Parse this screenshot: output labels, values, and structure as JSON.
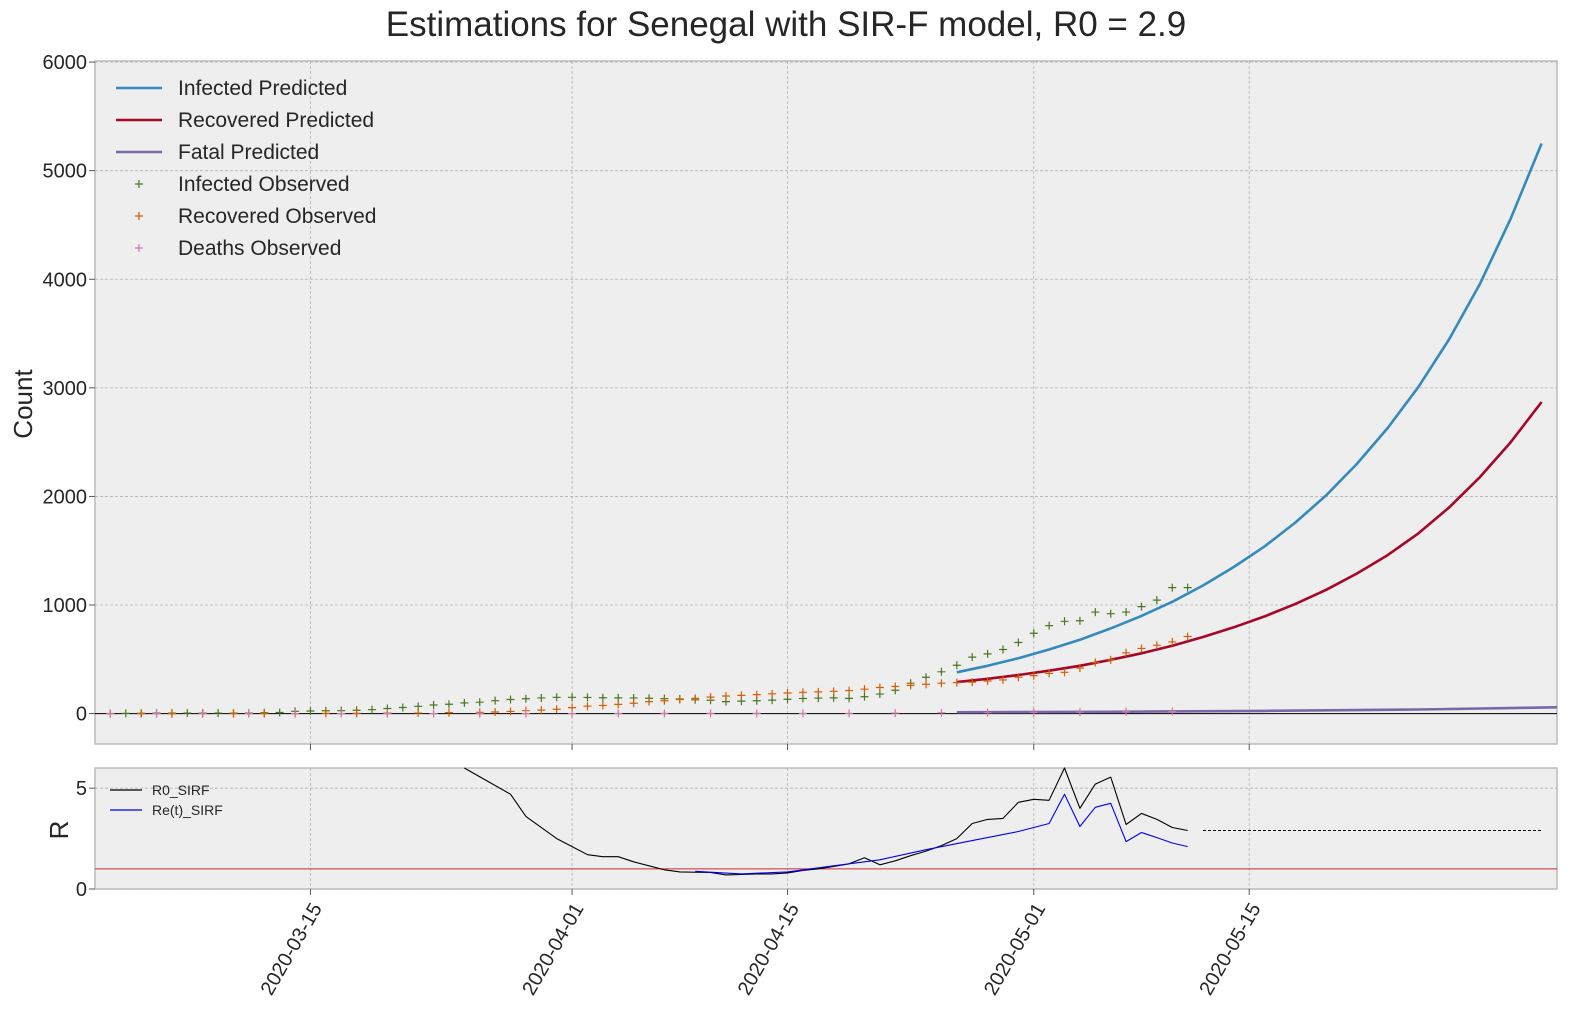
{
  "title": "Estimations for Senegal with SIR-F model, R0 = 2.9",
  "chart_data": [
    {
      "type": "line",
      "ylabel": "Count",
      "xlabel": "",
      "xlim": [
        "2020-03-01",
        "2020-06-04"
      ],
      "ylim": [
        -280,
        6010
      ],
      "yticks": [
        0,
        1000,
        2000,
        3000,
        4000,
        5000,
        6000
      ],
      "xticks": [
        "2020-03-15",
        "2020-04-01",
        "2020-04-15",
        "2020-05-01",
        "2020-05-15"
      ],
      "grid": true,
      "legend": "top-left",
      "series": [
        {
          "name": "Infected Predicted",
          "kind": "line",
          "color": "#348abd",
          "x": [
            "2020-04-26",
            "2020-04-28",
            "2020-04-30",
            "2020-05-02",
            "2020-05-04",
            "2020-05-06",
            "2020-05-08",
            "2020-05-10",
            "2020-05-12",
            "2020-05-14",
            "2020-05-16",
            "2020-05-18",
            "2020-05-20",
            "2020-05-22",
            "2020-05-24",
            "2020-05-26",
            "2020-05-28",
            "2020-05-30",
            "2020-06-01",
            "2020-06-03"
          ],
          "values": [
            380,
            440,
            510,
            590,
            680,
            785,
            900,
            1030,
            1180,
            1350,
            1540,
            1760,
            2010,
            2300,
            2630,
            3010,
            3450,
            3960,
            4560,
            5250
          ]
        },
        {
          "name": "Recovered Predicted",
          "kind": "line",
          "color": "#a60628",
          "x": [
            "2020-04-26",
            "2020-04-28",
            "2020-04-30",
            "2020-05-02",
            "2020-05-04",
            "2020-05-06",
            "2020-05-08",
            "2020-05-10",
            "2020-05-12",
            "2020-05-14",
            "2020-05-16",
            "2020-05-18",
            "2020-05-20",
            "2020-05-22",
            "2020-05-24",
            "2020-05-26",
            "2020-05-28",
            "2020-05-30",
            "2020-06-01",
            "2020-06-03"
          ],
          "values": [
            290,
            320,
            355,
            395,
            440,
            495,
            555,
            625,
            705,
            795,
            895,
            1010,
            1140,
            1290,
            1460,
            1660,
            1900,
            2180,
            2500,
            2870
          ]
        },
        {
          "name": "Fatal Predicted",
          "kind": "line",
          "color": "#7a68a6",
          "x": [
            "2020-04-26",
            "2020-05-06",
            "2020-05-16",
            "2020-05-26",
            "2020-06-04"
          ],
          "values": [
            12,
            17,
            25,
            38,
            58
          ]
        },
        {
          "name": "Infected Observed",
          "kind": "marker",
          "color": "#467821",
          "x": [
            "2020-03-02",
            "2020-03-03",
            "2020-03-04",
            "2020-03-05",
            "2020-03-06",
            "2020-03-07",
            "2020-03-08",
            "2020-03-09",
            "2020-03-10",
            "2020-03-11",
            "2020-03-12",
            "2020-03-13",
            "2020-03-14",
            "2020-03-15",
            "2020-03-16",
            "2020-03-17",
            "2020-03-18",
            "2020-03-19",
            "2020-03-20",
            "2020-03-21",
            "2020-03-22",
            "2020-03-23",
            "2020-03-24",
            "2020-03-25",
            "2020-03-26",
            "2020-03-27",
            "2020-03-28",
            "2020-03-29",
            "2020-03-30",
            "2020-03-31",
            "2020-04-01",
            "2020-04-02",
            "2020-04-03",
            "2020-04-04",
            "2020-04-05",
            "2020-04-06",
            "2020-04-07",
            "2020-04-08",
            "2020-04-09",
            "2020-04-10",
            "2020-04-11",
            "2020-04-12",
            "2020-04-13",
            "2020-04-14",
            "2020-04-15",
            "2020-04-16",
            "2020-04-17",
            "2020-04-18",
            "2020-04-19",
            "2020-04-20",
            "2020-04-21",
            "2020-04-22",
            "2020-04-23",
            "2020-04-24",
            "2020-04-25",
            "2020-04-26",
            "2020-04-27",
            "2020-04-28",
            "2020-04-29",
            "2020-04-30",
            "2020-05-01",
            "2020-05-02",
            "2020-05-03",
            "2020-05-04",
            "2020-05-05",
            "2020-05-06",
            "2020-05-07",
            "2020-05-08",
            "2020-05-09",
            "2020-05-10",
            "2020-05-11"
          ],
          "values": [
            1,
            2,
            3,
            4,
            4,
            4,
            4,
            4,
            4,
            4,
            8,
            10,
            21,
            24,
            26,
            27,
            31,
            36,
            47,
            56,
            67,
            79,
            86,
            99,
            105,
            119,
            130,
            137,
            144,
            150,
            150,
            149,
            146,
            145,
            144,
            141,
            138,
            135,
            127,
            123,
            110,
            115,
            118,
            124,
            132,
            139,
            143,
            145,
            140,
            155,
            180,
            215,
            280,
            335,
            385,
            445,
            520,
            550,
            590,
            655,
            740,
            810,
            850,
            855,
            935,
            920,
            935,
            985,
            1045,
            1160,
            1160
          ]
        },
        {
          "name": "Recovered Observed",
          "kind": "marker",
          "color": "#d55e00",
          "x": [
            "2020-03-02",
            "2020-03-04",
            "2020-03-06",
            "2020-03-08",
            "2020-03-10",
            "2020-03-12",
            "2020-03-14",
            "2020-03-16",
            "2020-03-18",
            "2020-03-20",
            "2020-03-22",
            "2020-03-24",
            "2020-03-26",
            "2020-03-27",
            "2020-03-28",
            "2020-03-29",
            "2020-03-30",
            "2020-03-31",
            "2020-04-01",
            "2020-04-02",
            "2020-04-03",
            "2020-04-04",
            "2020-04-05",
            "2020-04-06",
            "2020-04-07",
            "2020-04-08",
            "2020-04-09",
            "2020-04-10",
            "2020-04-11",
            "2020-04-12",
            "2020-04-13",
            "2020-04-14",
            "2020-04-15",
            "2020-04-16",
            "2020-04-17",
            "2020-04-18",
            "2020-04-19",
            "2020-04-20",
            "2020-04-21",
            "2020-04-22",
            "2020-04-23",
            "2020-04-24",
            "2020-04-25",
            "2020-04-26",
            "2020-04-27",
            "2020-04-28",
            "2020-04-29",
            "2020-04-30",
            "2020-05-01",
            "2020-05-02",
            "2020-05-03",
            "2020-05-04",
            "2020-05-05",
            "2020-05-06",
            "2020-05-07",
            "2020-05-08",
            "2020-05-09",
            "2020-05-10",
            "2020-05-11"
          ],
          "values": [
            0,
            0,
            0,
            0,
            0,
            0,
            0,
            2,
            2,
            5,
            5,
            9,
            12,
            15,
            20,
            27,
            32,
            40,
            55,
            68,
            75,
            85,
            95,
            110,
            118,
            130,
            140,
            152,
            162,
            168,
            175,
            182,
            190,
            196,
            200,
            205,
            212,
            225,
            240,
            250,
            260,
            270,
            280,
            285,
            290,
            300,
            310,
            335,
            350,
            370,
            380,
            420,
            470,
            495,
            560,
            600,
            630,
            660,
            710
          ]
        },
        {
          "name": "Deaths Observed",
          "kind": "marker",
          "color": "#cc79a7",
          "x": [
            "2020-03-02",
            "2020-03-05",
            "2020-03-08",
            "2020-03-11",
            "2020-03-14",
            "2020-03-17",
            "2020-03-20",
            "2020-03-23",
            "2020-03-26",
            "2020-03-29",
            "2020-04-01",
            "2020-04-04",
            "2020-04-07",
            "2020-04-10",
            "2020-04-13",
            "2020-04-16",
            "2020-04-19",
            "2020-04-22",
            "2020-04-25",
            "2020-04-28",
            "2020-05-01",
            "2020-05-04",
            "2020-05-07",
            "2020-05-10"
          ],
          "values": [
            0,
            0,
            0,
            0,
            0,
            0,
            0,
            0,
            0,
            0,
            0,
            1,
            2,
            2,
            2,
            2,
            2,
            4,
            7,
            9,
            11,
            13,
            17,
            19
          ]
        }
      ]
    },
    {
      "type": "line",
      "ylabel": "R",
      "xlim": [
        "2020-03-01",
        "2020-06-04"
      ],
      "ylim": [
        0,
        6
      ],
      "yticks": [
        0,
        5
      ],
      "threshold": 1,
      "threshold_color": "#d62728",
      "grid": true,
      "legend": "top-left",
      "series": [
        {
          "name": "R0_SIRF",
          "color": "#000000",
          "x": [
            "2020-03-25",
            "2020-03-28",
            "2020-03-29",
            "2020-03-31",
            "2020-04-01",
            "2020-04-02",
            "2020-04-03",
            "2020-04-04",
            "2020-04-05",
            "2020-04-07",
            "2020-04-08",
            "2020-04-10",
            "2020-04-11",
            "2020-04-12",
            "2020-04-13",
            "2020-04-14",
            "2020-04-15",
            "2020-04-16",
            "2020-04-17",
            "2020-04-18",
            "2020-04-19",
            "2020-04-20",
            "2020-04-21",
            "2020-04-22",
            "2020-04-23",
            "2020-04-24",
            "2020-04-25",
            "2020-04-26",
            "2020-04-27",
            "2020-04-28",
            "2020-04-29",
            "2020-04-30",
            "2020-05-01",
            "2020-05-02",
            "2020-05-03",
            "2020-05-04",
            "2020-05-05",
            "2020-05-06",
            "2020-05-07",
            "2020-05-08",
            "2020-05-09",
            "2020-05-10",
            "2020-05-11"
          ],
          "values": [
            6.05,
            4.7,
            3.6,
            2.5,
            2.1,
            1.7,
            1.6,
            1.6,
            1.35,
            0.95,
            0.85,
            0.82,
            0.7,
            0.72,
            0.75,
            0.75,
            0.8,
            0.92,
            1.0,
            1.12,
            1.25,
            1.55,
            1.2,
            1.4,
            1.65,
            1.88,
            2.15,
            2.5,
            3.25,
            3.45,
            3.5,
            4.3,
            4.45,
            4.4,
            6.1,
            4.0,
            5.2,
            5.55,
            3.2,
            3.75,
            3.45,
            3.05,
            2.9
          ]
        },
        {
          "name": "Re(t)_SIRF",
          "color": "#0000ee",
          "x": [
            "2020-04-09",
            "2020-04-12",
            "2020-04-15",
            "2020-04-18",
            "2020-04-21",
            "2020-04-24",
            "2020-04-27",
            "2020-04-30",
            "2020-05-02",
            "2020-05-03",
            "2020-05-04",
            "2020-05-05",
            "2020-05-06",
            "2020-05-07",
            "2020-05-08",
            "2020-05-09",
            "2020-05-10",
            "2020-05-11"
          ],
          "values": [
            0.88,
            0.75,
            0.85,
            1.15,
            1.45,
            1.95,
            2.4,
            2.85,
            3.25,
            4.7,
            3.1,
            4.05,
            4.25,
            2.35,
            2.8,
            2.55,
            2.28,
            2.1
          ]
        },
        {
          "name": "",
          "color": "#000000",
          "dashed": true,
          "x": [
            "2020-05-12",
            "2020-06-03"
          ],
          "values": [
            2.9,
            2.9
          ]
        }
      ]
    }
  ]
}
